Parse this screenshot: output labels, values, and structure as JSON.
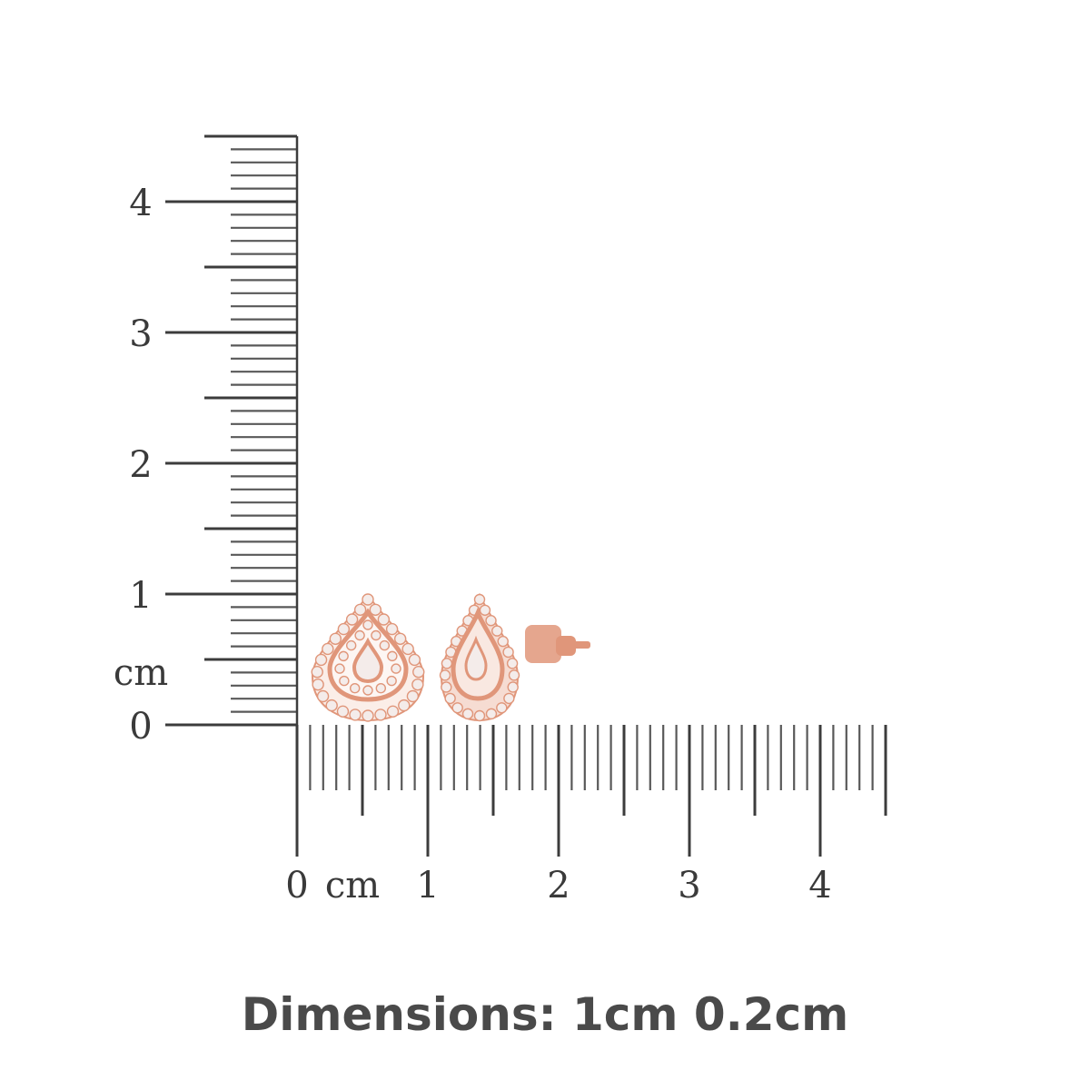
{
  "vertical_ruler": {
    "unit_label": "cm",
    "labels": [
      "0",
      "1",
      "2",
      "3",
      "4"
    ],
    "max_cm": 4.5
  },
  "horizontal_ruler": {
    "zero_label": "0",
    "unit_label": "cm",
    "labels": [
      "1",
      "2",
      "3",
      "4"
    ],
    "max_cm": 4.5
  },
  "product": {
    "name": "rose-gold-pear-halo-stud-earrings",
    "metal_color": "#e0967a",
    "stone_color": "#f4ecea"
  },
  "caption": "Dimensions: 1cm 0.2cm",
  "colors": {
    "ruler": "#3c3c3c",
    "caption": "#4a4a4a"
  }
}
